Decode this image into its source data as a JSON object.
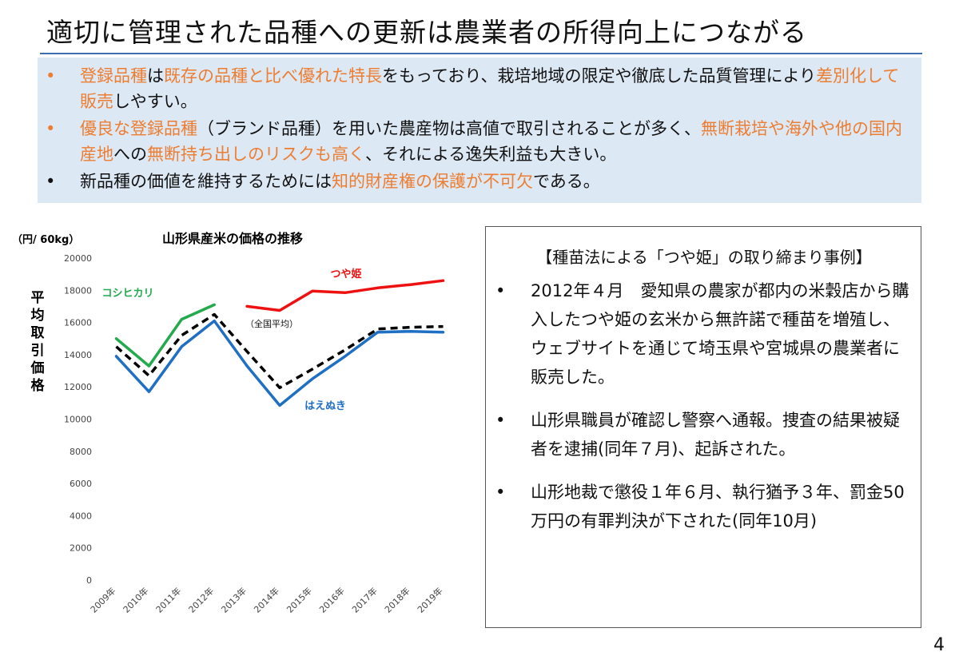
{
  "slide": {
    "title": "適切に管理された品種への更新は農業者の所得向上につながる",
    "page_number": "4"
  },
  "summary": {
    "bullet_1": [
      {
        "t": "登録品種",
        "hl": true
      },
      {
        "t": "は",
        "hl": false
      },
      {
        "t": "既存の品種と比べ優れた特長",
        "hl": true
      },
      {
        "t": "をもっており、栽培地域の限定や徹底した品質管理により",
        "hl": false
      },
      {
        "t": "差別化して販売",
        "hl": true
      },
      {
        "t": "しやすい。",
        "hl": false
      }
    ],
    "bullet_2": [
      {
        "t": "優良な登録品種",
        "hl": true
      },
      {
        "t": "（ブランド品種）を用いた農産物は高値で取引されることが多く、",
        "hl": false
      },
      {
        "t": "無断栽培や海外や他の国内産地",
        "hl": true
      },
      {
        "t": "への",
        "hl": false
      },
      {
        "t": "無断持ち出しのリスクも高く",
        "hl": true
      },
      {
        "t": "、それによる逸失利益も大きい。",
        "hl": false
      }
    ],
    "bullet_3": [
      {
        "t": "新品種の価値を維持するためには",
        "hl": false
      },
      {
        "t": "知的財産権の保護が不可欠",
        "hl": true
      },
      {
        "t": "である。",
        "hl": false
      }
    ],
    "highlight_color": "#ed7d31"
  },
  "chart_data": {
    "type": "line",
    "title": "山形県産米の価格の推移",
    "unit_label": "（円/ 60kg）",
    "ylabel": "平均取引価格",
    "ylim": [
      0,
      20000
    ],
    "yticks": [
      0,
      2000,
      4000,
      6000,
      8000,
      10000,
      12000,
      14000,
      16000,
      18000,
      20000
    ],
    "ytick_labels": [
      "0",
      "2000",
      "4000",
      "6000",
      "8000",
      "10000",
      "12000",
      "14000",
      "16000",
      "18000",
      "20000"
    ],
    "categories": [
      "2009年",
      "2010年",
      "2011年",
      "2012年",
      "2013年",
      "2014年",
      "2015年",
      "2016年",
      "2017年",
      "2018年",
      "2019年"
    ],
    "grid": false,
    "series": [
      {
        "name": "コシヒカリ",
        "color": "#22aa4d",
        "dash": false,
        "values": [
          15000,
          13300,
          16200,
          17100,
          null,
          null,
          null,
          null,
          null,
          null,
          null
        ]
      },
      {
        "name": "つや姫",
        "color": "#ee1111",
        "dash": false,
        "values": [
          null,
          null,
          null,
          null,
          17000,
          16750,
          17950,
          17850,
          18150,
          18350,
          18600
        ]
      },
      {
        "name": "（全国平均）",
        "color": "#000000",
        "dash": true,
        "values": [
          14500,
          12700,
          15200,
          16500,
          14200,
          11950,
          13100,
          14300,
          15600,
          15700,
          15750
        ]
      },
      {
        "name": "はえぬき",
        "color": "#1f6fc4",
        "dash": false,
        "values": [
          13900,
          11700,
          14500,
          16100,
          13300,
          10850,
          12500,
          13900,
          15400,
          15450,
          15400
        ]
      }
    ]
  },
  "case_study": {
    "title": "【種苗法による「つや姫」の取り締まり事例】",
    "bullet_1": "2012年４月　愛知県の農家が都内の米穀店から購入したつや姫の玄米から無許諾で種苗を増殖し、ウェブサイトを通じて埼玉県や宮城県の農業者に販売した。",
    "bullet_2": "山形県職員が確認し警察へ通報。捜査の結果被疑者を逮捕(同年７月)、起訴された。",
    "bullet_3": "山形地裁で懲役１年６月、執行猶予３年、罰金50万円の有罪判決が下された(同年10月)"
  }
}
